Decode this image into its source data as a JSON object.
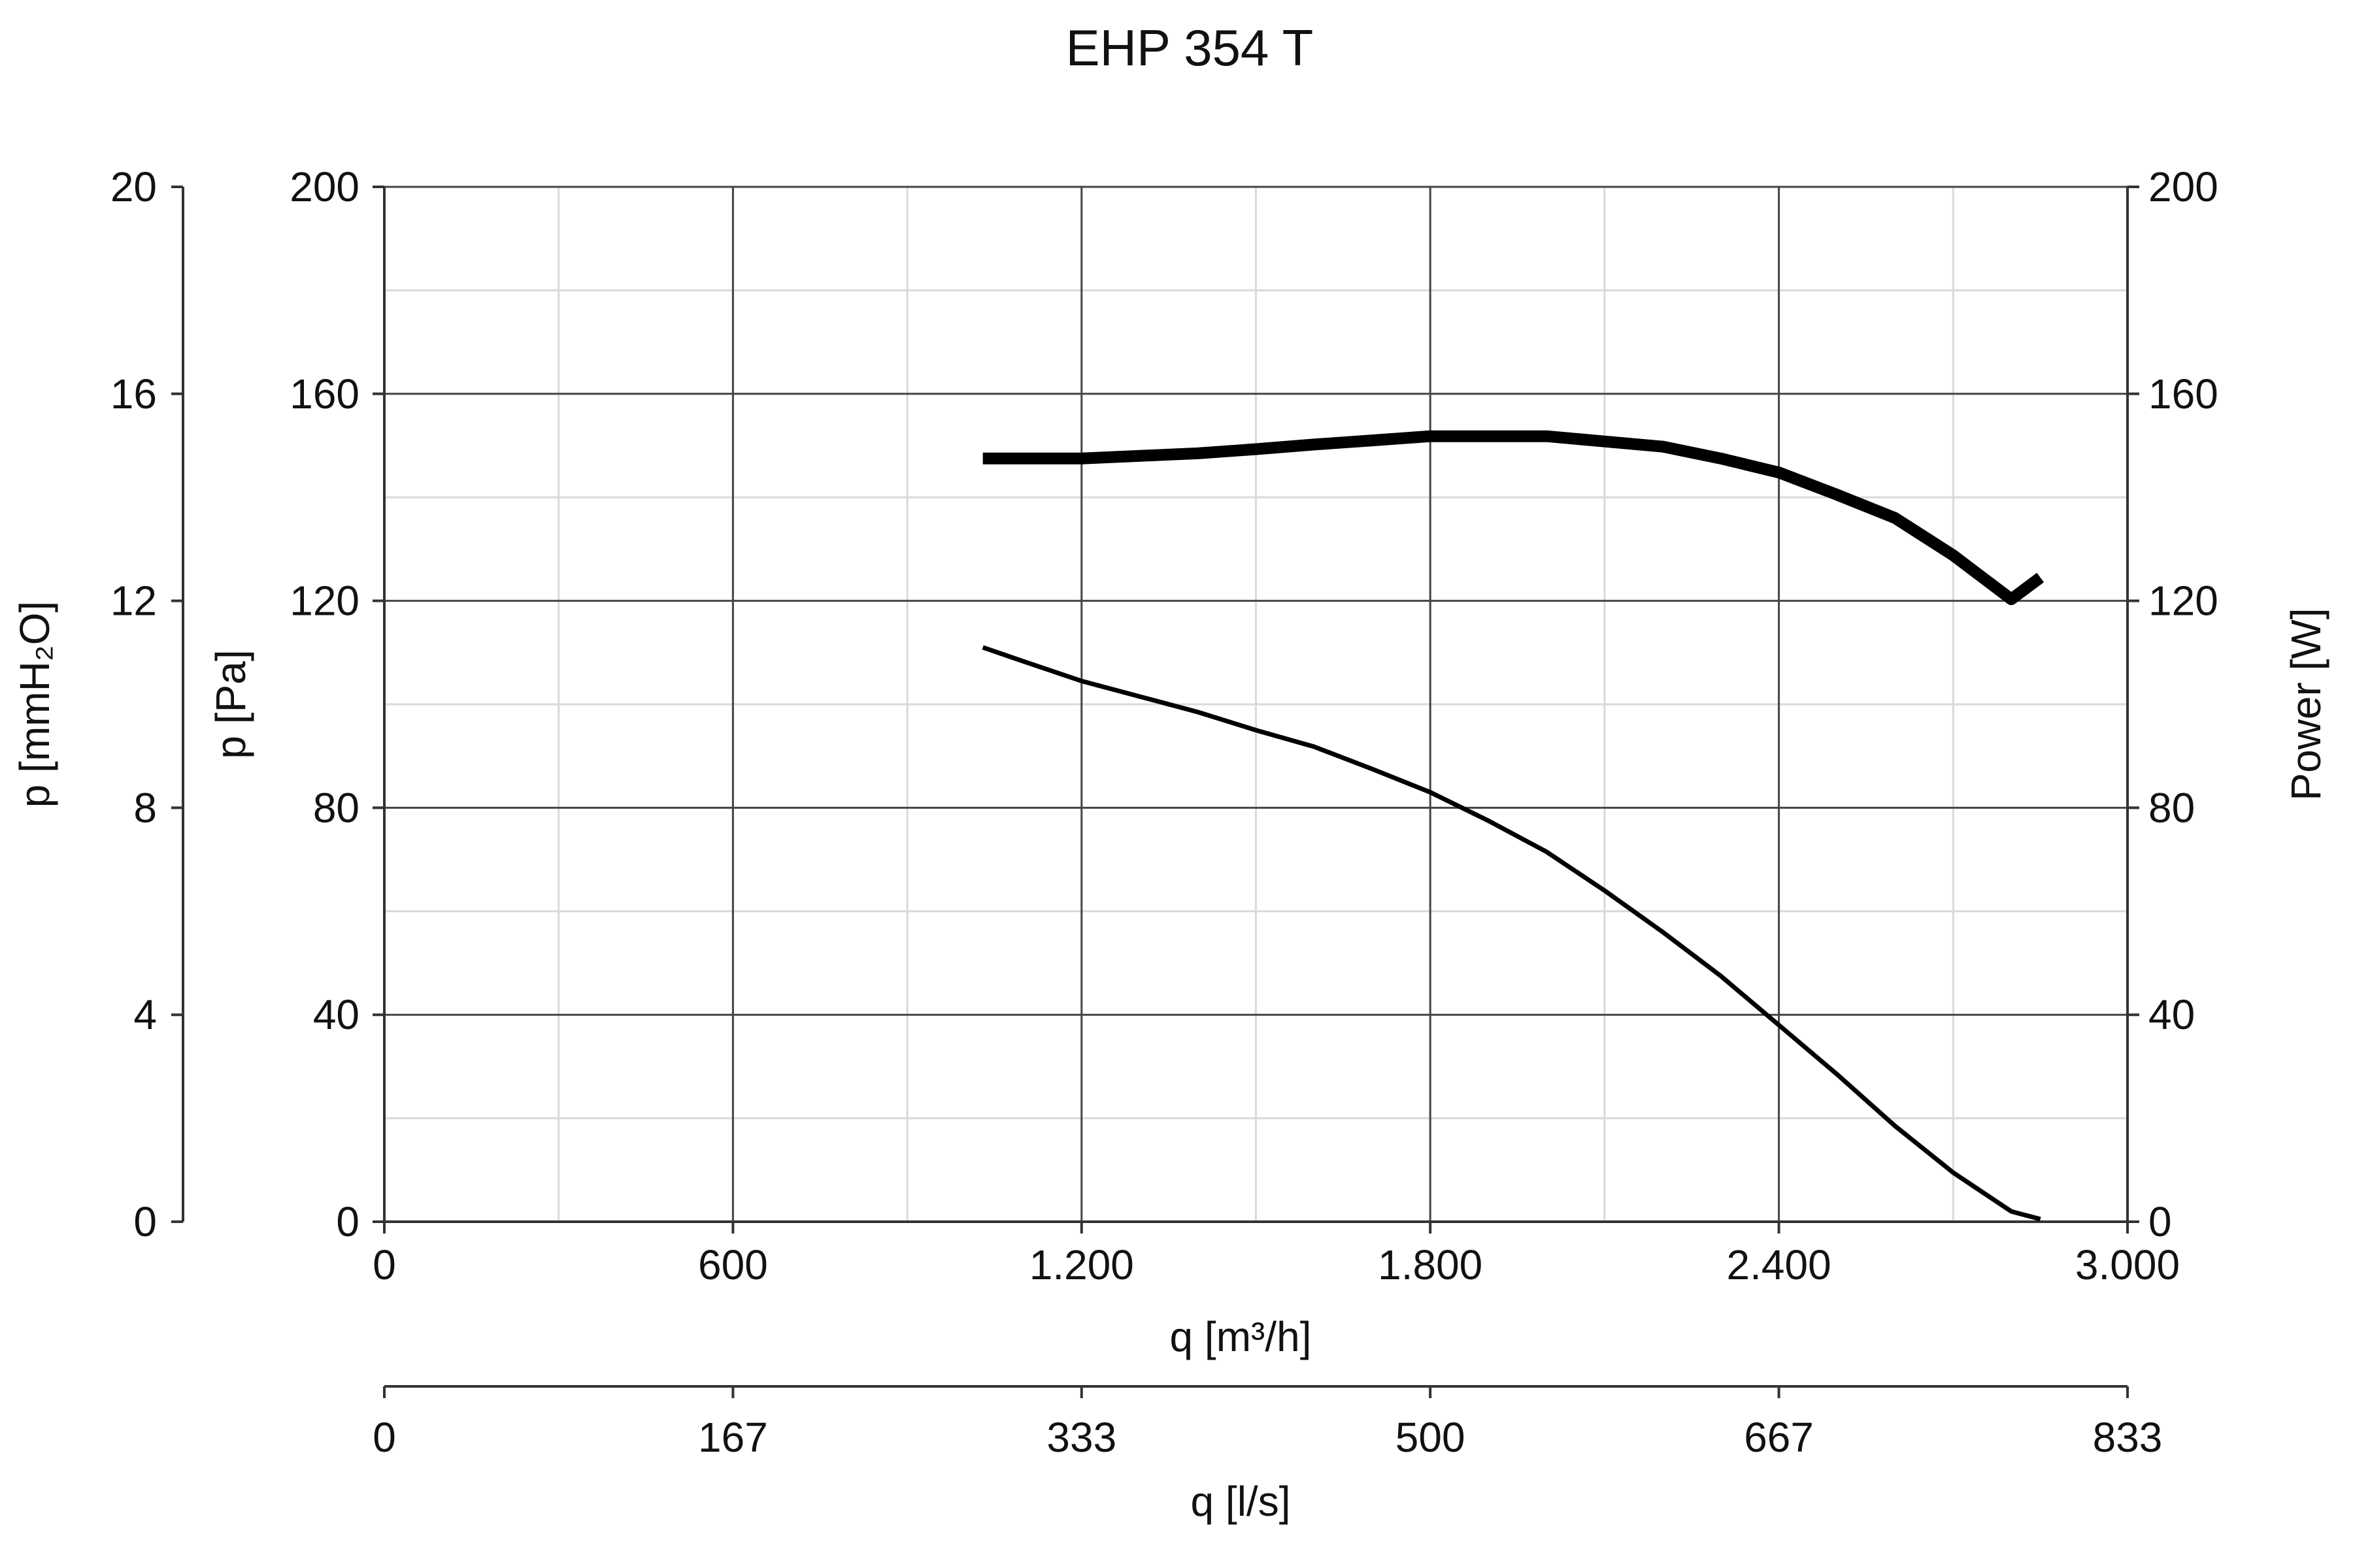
{
  "chart_data": {
    "type": "line",
    "title": "EHP 354 T",
    "xlabel": "q [m³/h]",
    "xlim": [
      0,
      3000
    ],
    "x_tick_values": [
      0,
      600,
      1200,
      1800,
      2400,
      3000
    ],
    "x_tick_labels": [
      "0",
      "600",
      "1.200",
      "1.800",
      "2.400",
      "3.000"
    ],
    "x2label": "q [l/s]",
    "x2_tick_labels": [
      "0",
      "167",
      "333",
      "500",
      "667",
      "833"
    ],
    "ylabel": "p [Pa]",
    "ylim": [
      0,
      200
    ],
    "y_tick_values": [
      0,
      40,
      80,
      120,
      160,
      200
    ],
    "y_tick_labels": [
      "0",
      "40",
      "80",
      "120",
      "160",
      "200"
    ],
    "y_outer_label": "p [mmH₂O]",
    "y_outer_tick_labels": [
      "0",
      "4",
      "8",
      "12",
      "16",
      "20"
    ],
    "y_right_label": "Power [W]",
    "y_right_tick_labels": [
      "0",
      "40",
      "80",
      "120",
      "160",
      "200"
    ],
    "grid": true,
    "series": [
      {
        "axis": "right",
        "stroke": "heavy",
        "color": "#000000",
        "x": [
          1030,
          1200,
          1300,
          1400,
          1500,
          1600,
          1700,
          1800,
          1900,
          2000,
          2100,
          2200,
          2300,
          2400,
          2500,
          2600,
          2700,
          2800,
          2850
        ],
        "values": [
          147.5,
          147.5,
          148,
          148.5,
          149.3,
          150.2,
          151,
          151.8,
          151.8,
          151.8,
          150.8,
          149.8,
          147.5,
          144.8,
          140.5,
          136,
          128.8,
          120.3,
          124.5
        ]
      },
      {
        "axis": "left",
        "stroke": "normal",
        "color": "#000000",
        "x": [
          1030,
          1100,
          1200,
          1300,
          1400,
          1500,
          1600,
          1700,
          1800,
          1900,
          2000,
          2100,
          2200,
          2300,
          2400,
          2500,
          2600,
          2700,
          2800,
          2850
        ],
        "values": [
          111,
          108.3,
          104.5,
          101.5,
          98.5,
          95,
          91.8,
          87.5,
          83,
          77.5,
          71.5,
          64,
          56,
          47.5,
          38,
          28.5,
          18.5,
          9.5,
          2,
          0.5
        ]
      }
    ]
  }
}
